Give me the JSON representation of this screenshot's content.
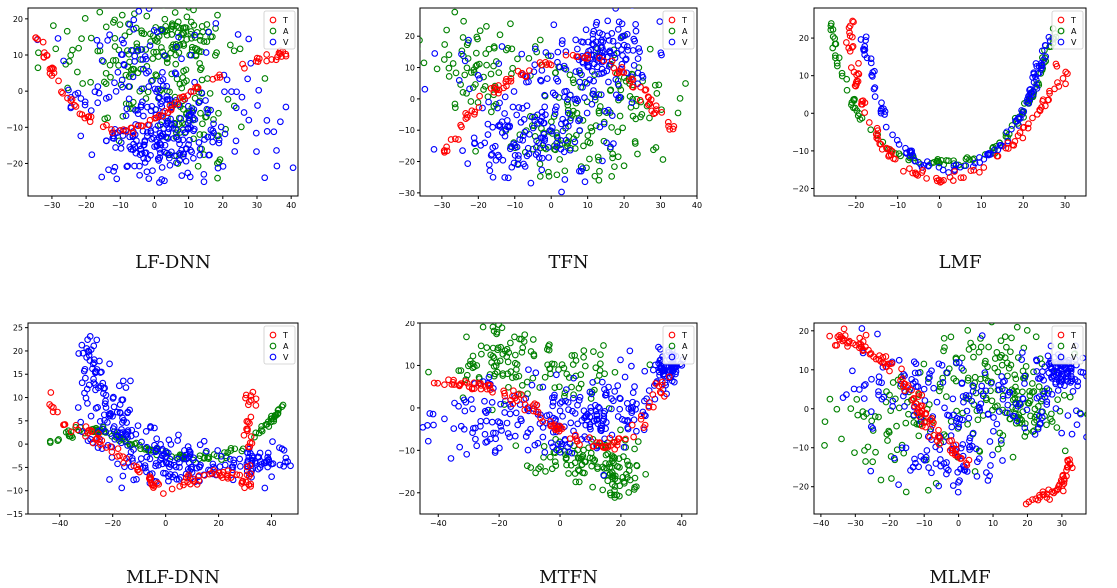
{
  "legend_labels": [
    "T",
    "A",
    "V"
  ],
  "colors": {
    "T": "#ff0000",
    "A": "#008000",
    "V": "#0000ff"
  },
  "chart_data": [
    {
      "type": "scatter",
      "caption": "LF-DNN",
      "xlim": [
        -37,
        42
      ],
      "ylim": [
        -29,
        23
      ],
      "xticks": [
        -30,
        -20,
        -10,
        0,
        10,
        20,
        30,
        40
      ],
      "yticks": [
        -20,
        -10,
        0,
        10,
        20
      ],
      "legend": "top-right",
      "grid": false,
      "series": [
        {
          "name": "T",
          "shape": "curve",
          "count": 90,
          "path": [
            [
              -35,
              16
            ],
            [
              -32,
              10
            ],
            [
              -29,
              3
            ],
            [
              -25,
              -3
            ],
            [
              -20,
              -7
            ],
            [
              -14,
              -10
            ],
            [
              -8,
              -11
            ],
            [
              0,
              -8
            ],
            [
              8,
              -2
            ],
            [
              16,
              3
            ],
            [
              24,
              6
            ],
            [
              32,
              9
            ],
            [
              40,
              11
            ]
          ],
          "spread": [
            0.6,
            0.5
          ]
        },
        {
          "name": "A",
          "shape": "cloud",
          "count": 260,
          "regions": [
            {
              "cx": -8,
              "cy": 8,
              "sx": 10,
              "sy": 7
            },
            {
              "cx": 10,
              "cy": -5,
              "sx": 10,
              "sy": 9
            },
            {
              "cx": 8,
              "cy": 15,
              "sx": 8,
              "sy": 4
            }
          ]
        },
        {
          "name": "V",
          "shape": "cloud",
          "count": 330,
          "regions": [
            {
              "cx": -6,
              "cy": 5,
              "sx": 13,
              "sy": 12
            },
            {
              "cx": 10,
              "cy": -8,
              "sx": 12,
              "sy": 9
            },
            {
              "cx": 2,
              "cy": -14,
              "sx": 8,
              "sy": 5
            }
          ]
        }
      ]
    },
    {
      "type": "scatter",
      "caption": "TFN",
      "xlim": [
        -36,
        40
      ],
      "ylim": [
        -31,
        29
      ],
      "xticks": [
        -30,
        -20,
        -10,
        0,
        10,
        20,
        30,
        40
      ],
      "yticks": [
        -30,
        -20,
        -10,
        0,
        10,
        20
      ],
      "legend": "top-right",
      "grid": false,
      "series": [
        {
          "name": "T",
          "shape": "curve",
          "count": 90,
          "path": [
            [
              -33,
              -20
            ],
            [
              -28,
              -15
            ],
            [
              -24,
              -8
            ],
            [
              -20,
              -2
            ],
            [
              -14,
              4
            ],
            [
              -6,
              9
            ],
            [
              0,
              12
            ],
            [
              6,
              14
            ],
            [
              12,
              13
            ],
            [
              18,
              10
            ],
            [
              24,
              4
            ],
            [
              28,
              -3
            ],
            [
              32,
              -8
            ],
            [
              36,
              -12
            ]
          ],
          "spread": [
            0.8,
            0.8
          ]
        },
        {
          "name": "A",
          "shape": "cloud",
          "count": 240,
          "regions": [
            {
              "cx": -18,
              "cy": 10,
              "sx": 9,
              "sy": 8
            },
            {
              "cx": 15,
              "cy": 0,
              "sx": 9,
              "sy": 8
            },
            {
              "cx": 5,
              "cy": -15,
              "sx": 10,
              "sy": 5
            }
          ]
        },
        {
          "name": "V",
          "shape": "cloud",
          "count": 320,
          "regions": [
            {
              "cx": 0,
              "cy": 0,
              "sx": 12,
              "sy": 10
            },
            {
              "cx": -5,
              "cy": -15,
              "sx": 9,
              "sy": 5
            },
            {
              "cx": 15,
              "cy": 15,
              "sx": 6,
              "sy": 5
            }
          ]
        }
      ]
    },
    {
      "type": "scatter",
      "caption": "LMF",
      "xlim": [
        -30,
        35
      ],
      "ylim": [
        -22,
        28
      ],
      "xticks": [
        -20,
        -10,
        0,
        10,
        20,
        30
      ],
      "yticks": [
        -20,
        -10,
        0,
        10,
        20
      ],
      "legend": "top-right",
      "grid": false,
      "series": [
        {
          "name": "T",
          "shape": "curve",
          "count": 110,
          "path": [
            [
              -22,
              25
            ],
            [
              -21,
              18
            ],
            [
              -20,
              10
            ],
            [
              -18,
              0
            ],
            [
              -14,
              -8
            ],
            [
              -8,
              -15
            ],
            [
              0,
              -18
            ],
            [
              8,
              -16
            ],
            [
              16,
              -10
            ],
            [
              22,
              -2
            ],
            [
              26,
              5
            ],
            [
              30,
              10
            ],
            [
              28,
              13
            ]
          ],
          "spread": [
            0.5,
            0.5
          ]
        },
        {
          "name": "A",
          "shape": "curve",
          "count": 120,
          "path": [
            [
              -26,
              25
            ],
            [
              -25,
              15
            ],
            [
              -22,
              5
            ],
            [
              -18,
              -3
            ],
            [
              -12,
              -10
            ],
            [
              -4,
              -13
            ],
            [
              5,
              -13
            ],
            [
              13,
              -10
            ],
            [
              19,
              -2
            ],
            [
              23,
              7
            ],
            [
              26,
              17
            ],
            [
              28,
              22
            ]
          ],
          "spread": [
            0.5,
            0.5
          ]
        },
        {
          "name": "V",
          "shape": "curve",
          "count": 120,
          "path": [
            [
              -18,
              22
            ],
            [
              -17,
              14
            ],
            [
              -15,
              5
            ],
            [
              -12,
              -4
            ],
            [
              -6,
              -12
            ],
            [
              0,
              -15
            ],
            [
              8,
              -14
            ],
            [
              15,
              -8
            ],
            [
              20,
              0
            ],
            [
              23,
              10
            ],
            [
              26,
              20
            ]
          ],
          "spread": [
            0.5,
            0.5
          ]
        }
      ]
    },
    {
      "type": "scatter",
      "caption": "MLF-DNN",
      "xlim": [
        -52,
        50
      ],
      "ylim": [
        -15,
        26
      ],
      "xticks": [
        -40,
        -20,
        0,
        20,
        40
      ],
      "yticks": [
        -15,
        -10,
        -5,
        0,
        5,
        10,
        15,
        20,
        25
      ],
      "legend": "top-right",
      "grid": false,
      "series": [
        {
          "name": "T",
          "shape": "curve",
          "count": 120,
          "path": [
            [
              -42,
              11
            ],
            [
              -43,
              7
            ],
            [
              -40,
              4
            ],
            [
              -33,
              3
            ],
            [
              -25,
              1
            ],
            [
              -15,
              -3
            ],
            [
              -8,
              -7
            ],
            [
              0,
              -10
            ],
            [
              8,
              -8
            ],
            [
              18,
              -6
            ],
            [
              26,
              -7
            ],
            [
              31,
              -9
            ],
            [
              32,
              -3
            ],
            [
              31,
              5
            ],
            [
              33,
              10
            ],
            [
              30,
              11
            ]
          ],
          "spread": [
            1.0,
            0.6
          ]
        },
        {
          "name": "A",
          "shape": "curve",
          "count": 120,
          "path": [
            [
              -47,
              0
            ],
            [
              -40,
              1.5
            ],
            [
              -32,
              3
            ],
            [
              -24,
              3
            ],
            [
              -16,
              1
            ],
            [
              -8,
              -1
            ],
            [
              0,
              -2
            ],
            [
              10,
              -3
            ],
            [
              20,
              -3
            ],
            [
              28,
              -1
            ],
            [
              34,
              2
            ],
            [
              40,
              5
            ],
            [
              45,
              9
            ]
          ],
          "spread": [
            0.8,
            0.4
          ]
        },
        {
          "name": "V",
          "shape": "cloud",
          "count": 300,
          "regions": [
            {
              "cx": -28,
              "cy": 16,
              "sx": 3,
              "sy": 5
            },
            {
              "cx": -20,
              "cy": 5,
              "sx": 5,
              "sy": 4
            },
            {
              "cx": -5,
              "cy": -3,
              "sx": 8,
              "sy": 3
            },
            {
              "cx": 10,
              "cy": -5,
              "sx": 10,
              "sy": 2.5
            },
            {
              "cx": 35,
              "cy": -4,
              "sx": 5,
              "sy": 1.5
            }
          ]
        }
      ]
    },
    {
      "type": "scatter",
      "caption": "MTFN",
      "xlim": [
        -46,
        45
      ],
      "ylim": [
        -25,
        20
      ],
      "xticks": [
        -40,
        -20,
        0,
        20,
        40
      ],
      "yticks": [
        -20,
        -10,
        0,
        10,
        20
      ],
      "legend": "top-right",
      "grid": false,
      "series": [
        {
          "name": "T",
          "shape": "curve",
          "count": 110,
          "path": [
            [
              -43,
              5.5
            ],
            [
              -35,
              6
            ],
            [
              -25,
              5
            ],
            [
              -15,
              3
            ],
            [
              -8,
              -1
            ],
            [
              0,
              -5
            ],
            [
              8,
              -8
            ],
            [
              15,
              -9
            ],
            [
              22,
              -7
            ],
            [
              28,
              -2
            ],
            [
              32,
              3
            ],
            [
              35,
              8
            ]
          ],
          "spread": [
            1.2,
            0.7
          ]
        },
        {
          "name": "A",
          "shape": "cloud",
          "count": 260,
          "regions": [
            {
              "cx": -22,
              "cy": 12,
              "sx": 9,
              "sy": 4
            },
            {
              "cx": 0,
              "cy": 8,
              "sx": 12,
              "sy": 4
            },
            {
              "cx": 18,
              "cy": -15,
              "sx": 4,
              "sy": 4
            },
            {
              "cx": 5,
              "cy": -12,
              "sx": 8,
              "sy": 3
            }
          ]
        },
        {
          "name": "V",
          "shape": "cloud",
          "count": 320,
          "regions": [
            {
              "cx": -25,
              "cy": -3,
              "sx": 10,
              "sy": 5
            },
            {
              "cx": 5,
              "cy": -2,
              "sx": 9,
              "sy": 5
            },
            {
              "cx": 20,
              "cy": 0,
              "sx": 6,
              "sy": 4
            },
            {
              "cx": 35,
              "cy": 10,
              "sx": 2,
              "sy": 2
            }
          ]
        }
      ]
    },
    {
      "type": "scatter",
      "caption": "MLMF",
      "xlim": [
        -42,
        37
      ],
      "ylim": [
        -27,
        22
      ],
      "xticks": [
        -40,
        -30,
        -20,
        -10,
        0,
        10,
        20,
        30
      ],
      "yticks": [
        -20,
        -10,
        0,
        10,
        20
      ],
      "legend": "top-right",
      "grid": false,
      "series": [
        {
          "name": "T",
          "shape": "curve",
          "count": 110,
          "path": [
            [
              -38,
              17
            ],
            [
              -33,
              18
            ],
            [
              -28,
              16
            ],
            [
              -22,
              12
            ],
            [
              -15,
              5
            ],
            [
              -10,
              -2
            ],
            [
              -5,
              -8
            ],
            [
              0,
              -12
            ],
            [
              3,
              -14
            ]
          ],
          "spread": [
            1.0,
            1.0
          ]
        },
        {
          "name": "T",
          "shape": "curve",
          "count": 40,
          "path": [
            [
              20,
              -24
            ],
            [
              26,
              -22
            ],
            [
              30,
              -20
            ],
            [
              32,
              -16
            ],
            [
              32,
              -13
            ]
          ],
          "spread": [
            0.5,
            0.5
          ]
        },
        {
          "name": "A",
          "shape": "cloud",
          "count": 260,
          "regions": [
            {
              "cx": 10,
              "cy": 10,
              "sx": 8,
              "sy": 6
            },
            {
              "cx": -15,
              "cy": -5,
              "sx": 10,
              "sy": 8
            },
            {
              "cx": 20,
              "cy": 0,
              "sx": 8,
              "sy": 5
            }
          ]
        },
        {
          "name": "V",
          "shape": "cloud",
          "count": 320,
          "regions": [
            {
              "cx": -15,
              "cy": 5,
              "sx": 10,
              "sy": 6
            },
            {
              "cx": -3,
              "cy": -12,
              "sx": 8,
              "sy": 5
            },
            {
              "cx": 15,
              "cy": 2,
              "sx": 10,
              "sy": 5
            },
            {
              "cx": 30,
              "cy": 10,
              "sx": 3,
              "sy": 2
            }
          ]
        }
      ]
    }
  ]
}
